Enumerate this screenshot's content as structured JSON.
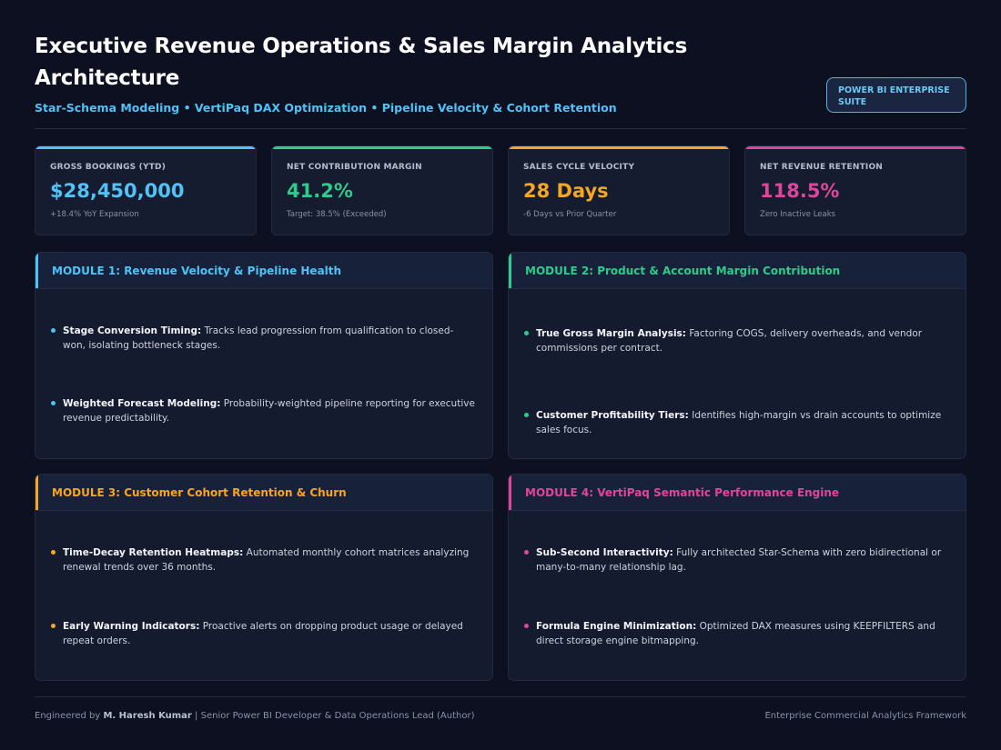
{
  "header": {
    "title": "Executive Revenue Operations & Sales Margin Analytics Architecture",
    "subtitle": "Star-Schema Modeling • VertiPaq DAX Optimization • Pipeline Velocity & Cohort Retention",
    "badge": "POWER BI ENTERPRISE SUITE"
  },
  "kpis": [
    {
      "label": "GROSS BOOKINGS (YTD)",
      "value": "$28,450,000",
      "note": "+18.4% YoY Expansion",
      "color": "#4fc3f7"
    },
    {
      "label": "NET CONTRIBUTION MARGIN",
      "value": "41.2%",
      "note": "Target: 38.5% (Exceeded)",
      "color": "#2ecc8a"
    },
    {
      "label": "SALES CYCLE VELOCITY",
      "value": "28 Days",
      "note": "-6 Days vs Prior Quarter",
      "color": "#f5a623"
    },
    {
      "label": "NET REVENUE RETENTION",
      "value": "118.5%",
      "note": "Zero Inactive Leaks",
      "color": "#e0459b"
    }
  ],
  "modules": [
    {
      "title": "MODULE 1: Revenue Velocity & Pipeline Health",
      "color": "#4fc3f7",
      "items": [
        {
          "term": "Stage Conversion Timing:",
          "text": "Tracks lead progression from qualification to closed-won, isolating bottleneck stages."
        },
        {
          "term": "Weighted Forecast Modeling:",
          "text": "Probability-weighted pipeline reporting for executive revenue predictability."
        }
      ]
    },
    {
      "title": "MODULE 2: Product & Account Margin Contribution",
      "color": "#2ecc8a",
      "items": [
        {
          "term": "True Gross Margin Analysis:",
          "text": "Factoring COGS, delivery overheads, and vendor commissions per contract."
        },
        {
          "term": "Customer Profitability Tiers:",
          "text": "Identifies high-margin vs drain accounts to optimize sales focus."
        }
      ]
    },
    {
      "title": "MODULE 3: Customer Cohort Retention & Churn",
      "color": "#f5a623",
      "items": [
        {
          "term": "Time-Decay Retention Heatmaps:",
          "text": "Automated monthly cohort matrices analyzing renewal trends over 36 months."
        },
        {
          "term": "Early Warning Indicators:",
          "text": "Proactive alerts on dropping product usage or delayed repeat orders."
        }
      ]
    },
    {
      "title": "MODULE 4: VertiPaq Semantic Performance Engine",
      "color": "#e0459b",
      "items": [
        {
          "term": "Sub-Second Interactivity:",
          "text": "Fully architected Star-Schema with zero bidirectional or many-to-many relationship lag."
        },
        {
          "term": "Formula Engine Minimization:",
          "text": "Optimized DAX measures using KEEPFILTERS and direct storage engine bitmapping."
        }
      ]
    }
  ],
  "footer": {
    "prefix": "Engineered by ",
    "author": "M. Haresh Kumar",
    "suffix": " | Senior Power BI Developer & Data Operations Lead (Author)",
    "right": "Enterprise Commercial Analytics Framework"
  }
}
